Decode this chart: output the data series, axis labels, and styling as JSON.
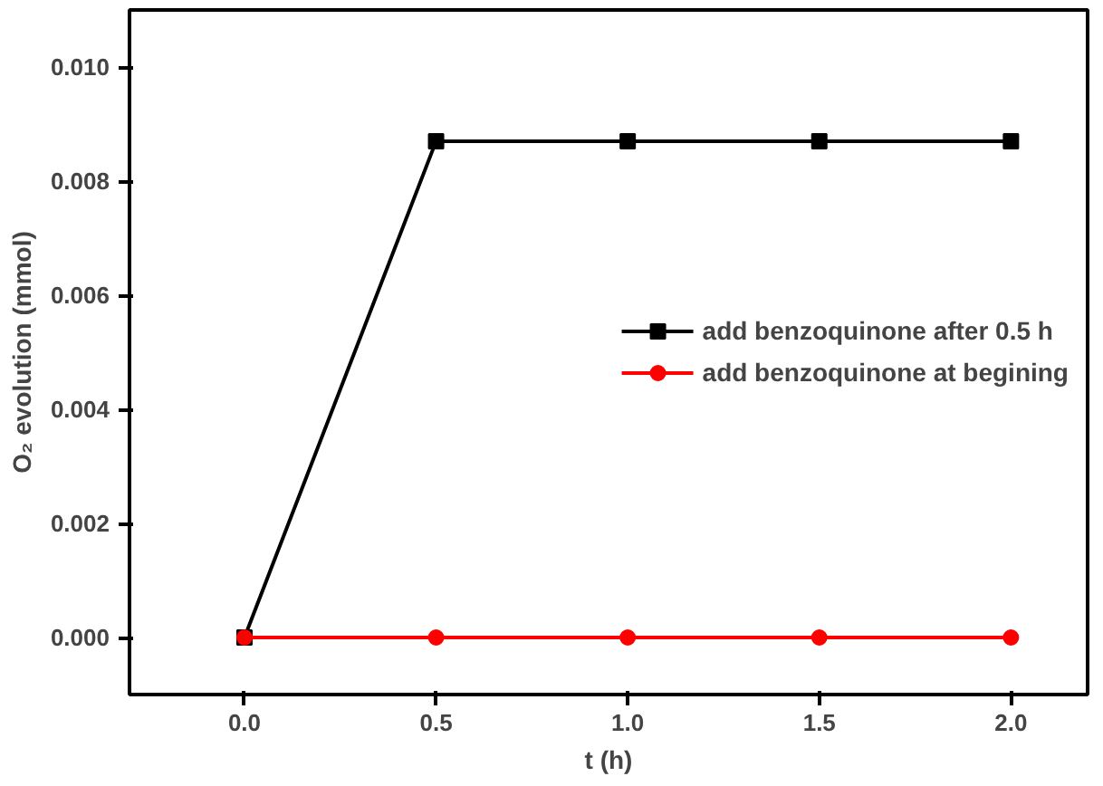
{
  "chart_data": {
    "type": "line",
    "xlabel": "t (h)",
    "ylabel": "O₂ evolution (mmol)",
    "x": [
      0.0,
      0.5,
      1.0,
      1.5,
      2.0
    ],
    "series": [
      {
        "name": "add benzoquinone after 0.5 h",
        "color": "#000000",
        "marker": "square",
        "values": [
          0.0,
          0.0087,
          0.0087,
          0.0087,
          0.0087
        ]
      },
      {
        "name": "add benzoquinone at begining",
        "color": "#ff0000",
        "marker": "circle",
        "values": [
          0.0,
          0.0,
          0.0,
          0.0,
          0.0
        ]
      }
    ],
    "xlim": [
      -0.3,
      2.2
    ],
    "ylim": [
      -0.001,
      0.011
    ],
    "xticks": [
      {
        "value": 0.0,
        "label": "0.0"
      },
      {
        "value": 0.5,
        "label": "0.5"
      },
      {
        "value": 1.0,
        "label": "1.0"
      },
      {
        "value": 1.5,
        "label": "1.5"
      },
      {
        "value": 2.0,
        "label": "2.0"
      }
    ],
    "yticks": [
      {
        "value": 0.0,
        "label": "0.000"
      },
      {
        "value": 0.002,
        "label": "0.002"
      },
      {
        "value": 0.004,
        "label": "0.004"
      },
      {
        "value": 0.006,
        "label": "0.006"
      },
      {
        "value": 0.008,
        "label": "0.008"
      },
      {
        "value": 0.01,
        "label": "0.010"
      }
    ],
    "grid": false,
    "legend": "right",
    "line_style": "solid"
  }
}
